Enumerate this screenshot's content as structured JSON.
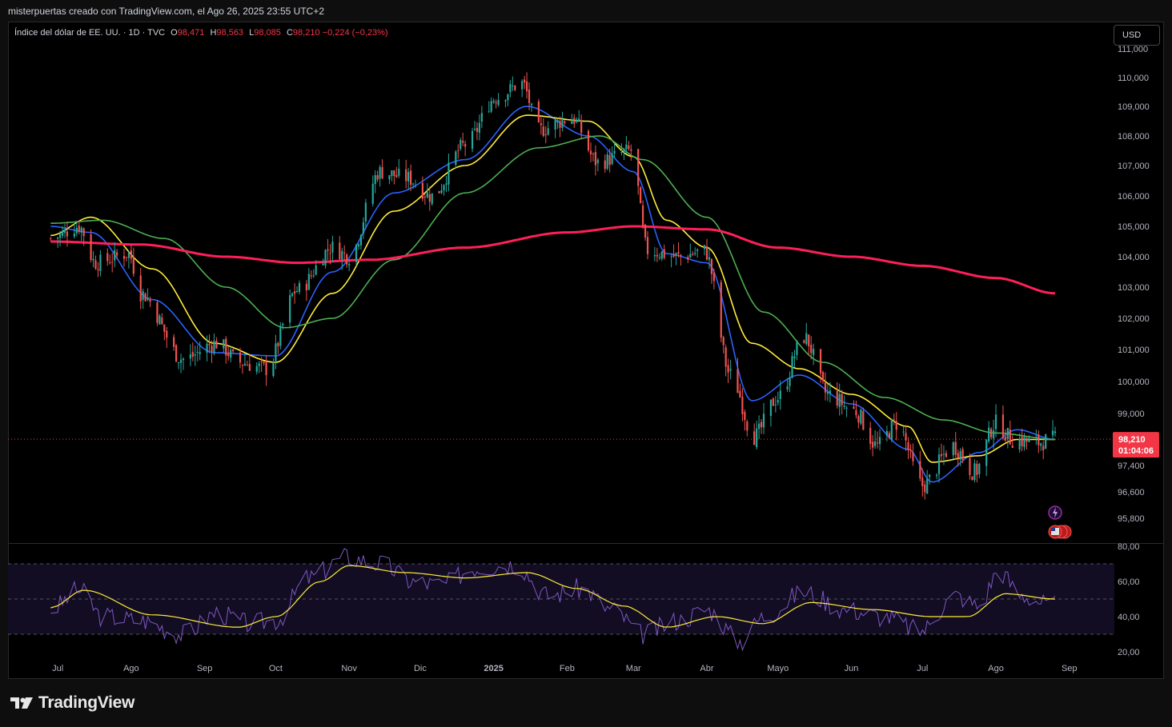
{
  "caption": "misterpuertas creado con TradingView.com, el Ago 26, 2025 23:55 UTC+2",
  "legend": {
    "symbol": "Índice del dólar de EE. UU. · 1D · TVC",
    "o_label": "O",
    "o_value": "98,471",
    "h_label": "H",
    "h_value": "98,563",
    "l_label": "L",
    "l_value": "98,085",
    "c_label": "C",
    "c_value": "98,210",
    "change": "−0,224 (−0,23%)"
  },
  "currency_button": "USD",
  "brand": "TradingView",
  "last_price_tag": {
    "price": "98,210",
    "countdown": "01:04:06"
  },
  "chart_data": [
    {
      "type": "candlestick",
      "title": "Índice del dólar de EE. UU.",
      "interval": "1D",
      "x_labels": [
        "Jul",
        "Ago",
        "Sep",
        "Oct",
        "Nov",
        "Dic",
        "2025",
        "Feb",
        "Mar",
        "Abr",
        "Mayo",
        "Jun",
        "Jul",
        "Ago",
        "Sep"
      ],
      "y_ticks": [
        "111,000",
        "110,000",
        "109,000",
        "108,000",
        "107,000",
        "106,000",
        "105,000",
        "104,000",
        "103,000",
        "102,000",
        "101,000",
        "100,000",
        "99,000",
        "97,400",
        "96,600",
        "95,800"
      ],
      "last_close": 98.21,
      "close_path": [
        [
          "Jun 28 2024",
          104.6
        ],
        [
          "Jul 10 2024",
          105.0
        ],
        [
          "Jul 17 2024",
          103.8
        ],
        [
          "Jul 31 2024",
          104.1
        ],
        [
          "Aug 05 2024",
          102.8
        ],
        [
          "Aug 23 2024",
          100.7
        ],
        [
          "Sep 06 2024",
          101.2
        ],
        [
          "Sep 16 2024",
          100.6
        ],
        [
          "Sep 27 2024",
          100.4
        ],
        [
          "Oct 10 2024",
          102.9
        ],
        [
          "Oct 25 2024",
          104.3
        ],
        [
          "Nov 01 2024",
          104.0
        ],
        [
          "Nov 14 2024",
          106.8
        ],
        [
          "Nov 25 2024",
          106.6
        ],
        [
          "Dec 06 2024",
          106.0
        ],
        [
          "Dec 20 2024",
          107.7
        ],
        [
          "Jan 02 2025",
          109.3
        ],
        [
          "Jan 13 2025",
          109.8
        ],
        [
          "Jan 20 2025",
          108.2
        ],
        [
          "Feb 03 2025",
          108.6
        ],
        [
          "Feb 14 2025",
          107.1
        ],
        [
          "Feb 28 2025",
          107.5
        ],
        [
          "Mar 07 2025",
          104.2
        ],
        [
          "Mar 20 2025",
          104.0
        ],
        [
          "Mar 31 2025",
          104.2
        ],
        [
          "Apr 11 2025",
          100.2
        ],
        [
          "Apr 21 2025",
          98.3
        ],
        [
          "May 01 2025",
          99.5
        ],
        [
          "May 12 2025",
          101.4
        ],
        [
          "May 22 2025",
          99.6
        ],
        [
          "Jun 02 2025",
          99.1
        ],
        [
          "Jun 12 2025",
          98.0
        ],
        [
          "Jun 20 2025",
          98.7
        ],
        [
          "Jul 01 2025",
          96.8
        ],
        [
          "Jul 14 2025",
          98.0
        ],
        [
          "Jul 23 2025",
          97.2
        ],
        [
          "Aug 01 2025",
          98.7
        ],
        [
          "Aug 08 2025",
          98.2
        ],
        [
          "Aug 18 2025",
          98.1
        ],
        [
          "Aug 26 2025",
          98.21
        ]
      ],
      "moving_averages": [
        {
          "color": "#2962ff",
          "points": [
            [
              "Jun 28 2024",
              105.0
            ],
            [
              "Jul 15 2024",
              104.8
            ],
            [
              "Aug 10 2024",
              102.6
            ],
            [
              "Sep 05 2024",
              100.9
            ],
            [
              "Oct 01 2024",
              100.8
            ],
            [
              "Oct 25 2024",
              103.5
            ],
            [
              "Nov 20 2024",
              106.1
            ],
            [
              "Dec 20 2024",
              107.2
            ],
            [
              "Jan 15 2025",
              109.0
            ],
            [
              "Feb 10 2025",
              108.0
            ],
            [
              "Mar 01 2025",
              106.8
            ],
            [
              "Mar 15 2025",
              104.1
            ],
            [
              "Apr 01 2025",
              103.8
            ],
            [
              "Apr 20 2025",
              99.4
            ],
            [
              "May 10 2025",
              100.2
            ],
            [
              "Jun 01 2025",
              99.3
            ],
            [
              "Jun 25 2025",
              97.9
            ],
            [
              "Jul 05 2025",
              96.9
            ],
            [
              "Jul 25 2025",
              97.8
            ],
            [
              "Aug 10 2025",
              98.5
            ],
            [
              "Aug 26 2025",
              98.2
            ]
          ]
        },
        {
          "color": "#ffeb3b",
          "points": [
            [
              "Jun 28 2024",
              104.7
            ],
            [
              "Jul 15 2024",
              105.3
            ],
            [
              "Aug 10 2024",
              103.6
            ],
            [
              "Sep 05 2024",
              101.2
            ],
            [
              "Oct 01 2024",
              100.6
            ],
            [
              "Oct 25 2024",
              102.8
            ],
            [
              "Nov 20 2024",
              105.5
            ],
            [
              "Dec 20 2024",
              107.0
            ],
            [
              "Jan 15 2025",
              108.7
            ],
            [
              "Feb 10 2025",
              108.5
            ],
            [
              "Mar 01 2025",
              107.3
            ],
            [
              "Mar 15 2025",
              105.2
            ],
            [
              "Apr 01 2025",
              104.3
            ],
            [
              "Apr 20 2025",
              101.2
            ],
            [
              "May 10 2025",
              100.4
            ],
            [
              "Jun 01 2025",
              99.6
            ],
            [
              "Jun 25 2025",
              98.6
            ],
            [
              "Jul 05 2025",
              97.5
            ],
            [
              "Jul 25 2025",
              97.7
            ],
            [
              "Aug 10 2025",
              98.2
            ],
            [
              "Aug 26 2025",
              98.2
            ]
          ]
        },
        {
          "color": "#4caf50",
          "points": [
            [
              "Jun 28 2024",
              105.1
            ],
            [
              "Jul 20 2024",
              105.2
            ],
            [
              "Aug 15 2024",
              104.6
            ],
            [
              "Sep 10 2024",
              103.0
            ],
            [
              "Oct 05 2024",
              101.7
            ],
            [
              "Oct 25 2024",
              102.0
            ],
            [
              "Nov 20 2024",
              103.9
            ],
            [
              "Dec 20 2024",
              106.1
            ],
            [
              "Jan 20 2025",
              107.6
            ],
            [
              "Feb 15 2025",
              108.0
            ],
            [
              "Mar 05 2025",
              107.2
            ],
            [
              "Apr 01 2025",
              105.3
            ],
            [
              "Apr 25 2025",
              102.2
            ],
            [
              "May 20 2025",
              100.6
            ],
            [
              "Jun 15 2025",
              99.5
            ],
            [
              "Jul 10 2025",
              98.8
            ],
            [
              "Aug 01 2025",
              98.4
            ],
            [
              "Aug 26 2025",
              98.2
            ]
          ]
        },
        {
          "color": "#ff1f5a",
          "points": [
            [
              "Jun 28 2024",
              104.5
            ],
            [
              "Aug 05 2024",
              104.4
            ],
            [
              "Sep 10 2024",
              104.0
            ],
            [
              "Oct 10 2024",
              103.8
            ],
            [
              "Nov 10 2024",
              103.9
            ],
            [
              "Dec 20 2024",
              104.3
            ],
            [
              "Feb 01 2025",
              104.8
            ],
            [
              "Mar 01 2025",
              105.0
            ],
            [
              "Apr 01 2025",
              104.9
            ],
            [
              "May 01 2025",
              104.3
            ],
            [
              "Jun 01 2025",
              104.0
            ],
            [
              "Jul 01 2025",
              103.7
            ],
            [
              "Aug 01 2025",
              103.3
            ],
            [
              "Aug 26 2025",
              102.8
            ]
          ]
        }
      ]
    },
    {
      "type": "line",
      "title": "RSI",
      "y_ticks": [
        "80,00",
        "60,00",
        "40,00",
        "20,00"
      ],
      "bands": [
        70,
        50,
        30
      ],
      "ylim": [
        20,
        80
      ],
      "rsi_color": "#7e57c2",
      "signal_color": "#ffeb3b",
      "rsi": [
        [
          "Jun 28 2024",
          44
        ],
        [
          "Jul 10 2024",
          55
        ],
        [
          "Jul 20 2024",
          40
        ],
        [
          "Aug 05 2024",
          38
        ],
        [
          "Aug 23 2024",
          30
        ],
        [
          "Sep 06 2024",
          42
        ],
        [
          "Sep 20 2024",
          36
        ],
        [
          "Oct 01 2024",
          38
        ],
        [
          "Oct 15 2024",
          62
        ],
        [
          "Oct 31 2024",
          74
        ],
        [
          "Nov 14 2024",
          70
        ],
        [
          "Nov 28 2024",
          60
        ],
        [
          "Dec 10 2024",
          58
        ],
        [
          "Dec 24 2024",
          68
        ],
        [
          "Jan 10 2025",
          70
        ],
        [
          "Jan 24 2025",
          52
        ],
        [
          "Feb 07 2025",
          56
        ],
        [
          "Feb 20 2025",
          44
        ],
        [
          "Mar 05 2025",
          30
        ],
        [
          "Mar 20 2025",
          38
        ],
        [
          "Apr 01 2025",
          44
        ],
        [
          "Apr 15 2025",
          26
        ],
        [
          "Apr 25 2025",
          40
        ],
        [
          "May 12 2025",
          54
        ],
        [
          "May 30 2025",
          44
        ],
        [
          "Jun 15 2025",
          40
        ],
        [
          "Jun 30 2025",
          32
        ],
        [
          "Jul 15 2025",
          52
        ],
        [
          "Jul 25 2025",
          46
        ],
        [
          "Aug 02 2025",
          66
        ],
        [
          "Aug 12 2025",
          52
        ],
        [
          "Aug 26 2025",
          46
        ]
      ],
      "signal": [
        [
          "Jun 28 2024",
          45
        ],
        [
          "Jul 12 2024",
          55
        ],
        [
          "Aug 10 2024",
          41
        ],
        [
          "Sep 15 2024",
          34
        ],
        [
          "Oct 01 2024",
          40
        ],
        [
          "Oct 20 2024",
          60
        ],
        [
          "Nov 01 2024",
          69
        ],
        [
          "Nov 25 2024",
          65
        ],
        [
          "Dec 20 2024",
          62
        ],
        [
          "Jan 15 2025",
          65
        ],
        [
          "Feb 05 2025",
          56
        ],
        [
          "Feb 25 2025",
          46
        ],
        [
          "Mar 15 2025",
          34
        ],
        [
          "Apr 05 2025",
          40
        ],
        [
          "Apr 25 2025",
          36
        ],
        [
          "May 15 2025",
          48
        ],
        [
          "Jun 10 2025",
          44
        ],
        [
          "Jul 05 2025",
          40
        ],
        [
          "Jul 20 2025",
          40
        ],
        [
          "Aug 05 2025",
          53
        ],
        [
          "Aug 26 2025",
          50
        ]
      ]
    }
  ]
}
